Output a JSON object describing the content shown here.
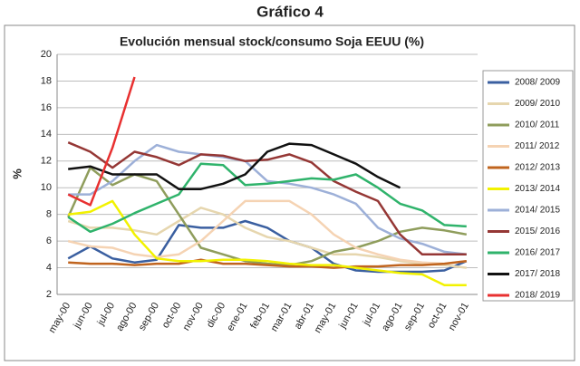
{
  "chart_data": {
    "type": "line",
    "title": "Gráfico 4",
    "subtitle": "Evolución mensual stock/consumo Soja EEUU (%)",
    "ylabel": "%",
    "categories": [
      "may-00",
      "jun-00",
      "jul-00",
      "ago-00",
      "sep-00",
      "oct-00",
      "nov-00",
      "dic-00",
      "ene-01",
      "feb-01",
      "mar-01",
      "abr-01",
      "may-01",
      "jun-01",
      "jul-01",
      "ago-01",
      "sep-01",
      "oct-01",
      "nov-01"
    ],
    "series": [
      {
        "name": "2008/ 2009",
        "color": "#3a5fa0",
        "values": [
          4.7,
          5.6,
          4.7,
          4.4,
          4.6,
          7.2,
          7.0,
          7.0,
          7.5,
          7.0,
          6.0,
          5.5,
          4.3,
          3.8,
          3.7,
          3.7,
          3.7,
          3.8,
          4.5
        ]
      },
      {
        "name": "2009/ 2010",
        "color": "#e6d6ae",
        "values": [
          7.5,
          7.0,
          7.0,
          6.8,
          6.5,
          7.5,
          8.5,
          8.0,
          7.0,
          6.3,
          6.0,
          5.5,
          5.0,
          5.0,
          4.8,
          4.5,
          4.3,
          4.2,
          4.0
        ]
      },
      {
        "name": "2010/ 2011",
        "color": "#8f9d5c",
        "values": [
          7.8,
          11.5,
          10.2,
          11.0,
          10.5,
          8.0,
          5.5,
          5.0,
          4.5,
          4.3,
          4.2,
          4.5,
          5.2,
          5.5,
          6.0,
          6.7,
          7.0,
          6.8,
          6.5
        ]
      },
      {
        "name": "2011/ 2012",
        "color": "#f5d3b3",
        "values": [
          6.0,
          5.6,
          5.5,
          5.0,
          4.8,
          5.0,
          6.0,
          7.5,
          9.0,
          9.0,
          9.0,
          8.0,
          6.5,
          5.5,
          5.0,
          4.6,
          4.4,
          4.3,
          4.5
        ]
      },
      {
        "name": "2012/ 2013",
        "color": "#c0641e",
        "values": [
          4.4,
          4.3,
          4.3,
          4.2,
          4.3,
          4.3,
          4.6,
          4.3,
          4.3,
          4.2,
          4.1,
          4.1,
          4.0,
          4.1,
          4.1,
          4.2,
          4.2,
          4.3,
          4.5
        ]
      },
      {
        "name": "2013/ 2014",
        "color": "#f2f200",
        "values": [
          8.0,
          8.2,
          9.0,
          6.5,
          4.7,
          4.5,
          4.5,
          4.6,
          4.6,
          4.5,
          4.3,
          4.2,
          4.2,
          4.0,
          3.8,
          3.6,
          3.5,
          2.7,
          2.7
        ]
      },
      {
        "name": "2014/ 2015",
        "color": "#9db0d8",
        "values": [
          9.5,
          9.5,
          10.5,
          12.0,
          13.2,
          12.7,
          12.5,
          12.3,
          12.0,
          10.5,
          10.3,
          10.0,
          9.5,
          8.8,
          7.0,
          6.2,
          5.8,
          5.2,
          5.0
        ]
      },
      {
        "name": "2015/ 2016",
        "color": "#953735",
        "values": [
          13.4,
          12.7,
          11.5,
          12.7,
          12.3,
          11.7,
          12.5,
          12.4,
          12.0,
          12.1,
          12.5,
          11.9,
          10.5,
          9.7,
          9.0,
          6.5,
          5.0,
          5.0,
          5.0
        ]
      },
      {
        "name": "2016/ 2017",
        "color": "#2fb36b",
        "values": [
          7.8,
          6.7,
          7.3,
          8.1,
          8.8,
          9.5,
          11.8,
          11.7,
          10.2,
          10.3,
          10.5,
          10.7,
          10.6,
          11.0,
          10.0,
          8.8,
          8.3,
          7.2,
          7.1
        ]
      },
      {
        "name": "2017/ 2018",
        "color": "#111111",
        "values": [
          11.4,
          11.6,
          11.0,
          11.0,
          11.0,
          9.9,
          9.9,
          10.3,
          11.0,
          12.7,
          13.3,
          13.2,
          12.5,
          11.8,
          10.8,
          10.0,
          null,
          null,
          null
        ]
      },
      {
        "name": "2018/ 2019",
        "color": "#e83030",
        "values": [
          9.5,
          8.7,
          13.0,
          18.3,
          null,
          null,
          null,
          null,
          null,
          null,
          null,
          null,
          null,
          null,
          null,
          null,
          null,
          null,
          null
        ]
      }
    ],
    "ylim": [
      2,
      20
    ],
    "yticks": [
      2,
      4,
      6,
      8,
      10,
      12,
      14,
      16,
      18,
      20
    ],
    "grid": true,
    "legend": "right"
  }
}
